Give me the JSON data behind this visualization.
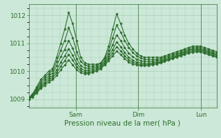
{
  "bg_color": "#cce8d8",
  "grid_color": "#aaccb8",
  "line_color": "#2d6e2d",
  "marker": "D",
  "marker_size": 1.8,
  "linewidth": 0.8,
  "ylabel_ticks": [
    1009,
    1010,
    1011,
    1012
  ],
  "xlabel": "Pression niveau de la mer( hPa )",
  "xlabel_color": "#2d6e2d",
  "xlabel_fontsize": 7.5,
  "tick_fontsize": 6.5,
  "tick_color": "#2d6e2d",
  "ylim": [
    1008.7,
    1012.4
  ],
  "xlim": [
    0,
    72
  ],
  "xtick_positions": [
    18,
    42,
    66
  ],
  "xtick_labels": [
    "Sam",
    "Dim",
    "Lun"
  ],
  "vline_positions": [
    18,
    42,
    66
  ],
  "series": [
    [
      1009.05,
      1009.2,
      1009.45,
      1009.7,
      1009.85,
      1010.0,
      1010.1,
      1010.5,
      1011.0,
      1011.5,
      1012.1,
      1011.7,
      1011.1,
      1010.5,
      1010.3,
      1010.25,
      1010.25,
      1010.25,
      1010.3,
      1010.5,
      1010.9,
      1011.5,
      1012.05,
      1011.7,
      1011.3,
      1011.0,
      1010.8,
      1010.65,
      1010.55,
      1010.5,
      1010.5,
      1010.5,
      1010.5,
      1010.5,
      1010.55,
      1010.6,
      1010.65,
      1010.7,
      1010.75,
      1010.8,
      1010.85,
      1010.9,
      1010.9,
      1010.9,
      1010.85,
      1010.8,
      1010.75,
      1010.7
    ],
    [
      1009.05,
      1009.18,
      1009.4,
      1009.62,
      1009.78,
      1009.92,
      1010.02,
      1010.35,
      1010.75,
      1011.1,
      1011.55,
      1011.2,
      1010.7,
      1010.35,
      1010.22,
      1010.18,
      1010.18,
      1010.2,
      1010.28,
      1010.45,
      1010.75,
      1011.2,
      1011.65,
      1011.4,
      1011.1,
      1010.85,
      1010.68,
      1010.55,
      1010.47,
      1010.43,
      1010.42,
      1010.42,
      1010.43,
      1010.45,
      1010.5,
      1010.55,
      1010.6,
      1010.65,
      1010.7,
      1010.75,
      1010.8,
      1010.85,
      1010.85,
      1010.85,
      1010.8,
      1010.75,
      1010.7,
      1010.65
    ],
    [
      1009.0,
      1009.15,
      1009.35,
      1009.55,
      1009.7,
      1009.83,
      1009.93,
      1010.2,
      1010.52,
      1010.78,
      1011.1,
      1010.82,
      1010.45,
      1010.2,
      1010.12,
      1010.1,
      1010.12,
      1010.15,
      1010.22,
      1010.38,
      1010.62,
      1010.95,
      1011.3,
      1011.1,
      1010.85,
      1010.65,
      1010.52,
      1010.43,
      1010.38,
      1010.35,
      1010.35,
      1010.36,
      1010.38,
      1010.4,
      1010.44,
      1010.5,
      1010.55,
      1010.6,
      1010.65,
      1010.7,
      1010.75,
      1010.8,
      1010.8,
      1010.8,
      1010.75,
      1010.7,
      1010.65,
      1010.6
    ],
    [
      1009.0,
      1009.12,
      1009.3,
      1009.48,
      1009.62,
      1009.75,
      1009.84,
      1010.05,
      1010.32,
      1010.55,
      1010.8,
      1010.57,
      1010.28,
      1010.1,
      1010.04,
      1010.03,
      1010.06,
      1010.1,
      1010.17,
      1010.32,
      1010.52,
      1010.78,
      1011.05,
      1010.88,
      1010.67,
      1010.5,
      1010.4,
      1010.33,
      1010.3,
      1010.28,
      1010.28,
      1010.3,
      1010.32,
      1010.35,
      1010.4,
      1010.45,
      1010.5,
      1010.56,
      1010.62,
      1010.67,
      1010.72,
      1010.77,
      1010.77,
      1010.77,
      1010.72,
      1010.67,
      1010.62,
      1010.57
    ],
    [
      1009.0,
      1009.1,
      1009.27,
      1009.43,
      1009.56,
      1009.68,
      1009.77,
      1009.95,
      1010.18,
      1010.38,
      1010.6,
      1010.4,
      1010.16,
      1010.02,
      1009.97,
      1009.97,
      1010.0,
      1010.05,
      1010.13,
      1010.27,
      1010.45,
      1010.65,
      1010.88,
      1010.73,
      1010.55,
      1010.41,
      1010.32,
      1010.27,
      1010.24,
      1010.23,
      1010.24,
      1010.26,
      1010.28,
      1010.32,
      1010.37,
      1010.42,
      1010.47,
      1010.53,
      1010.58,
      1010.63,
      1010.68,
      1010.72,
      1010.73,
      1010.73,
      1010.68,
      1010.63,
      1010.58,
      1010.53
    ],
    [
      1009.0,
      1009.08,
      1009.23,
      1009.38,
      1009.5,
      1009.61,
      1009.7,
      1009.85,
      1010.05,
      1010.22,
      1010.4,
      1010.23,
      1010.05,
      1009.95,
      1009.91,
      1009.92,
      1009.96,
      1010.01,
      1010.09,
      1010.22,
      1010.38,
      1010.55,
      1010.72,
      1010.6,
      1010.45,
      1010.33,
      1010.26,
      1010.22,
      1010.2,
      1010.2,
      1010.21,
      1010.23,
      1010.26,
      1010.3,
      1010.35,
      1010.4,
      1010.45,
      1010.5,
      1010.55,
      1010.6,
      1010.64,
      1010.68,
      1010.69,
      1010.69,
      1010.64,
      1010.59,
      1010.54,
      1010.5
    ]
  ]
}
